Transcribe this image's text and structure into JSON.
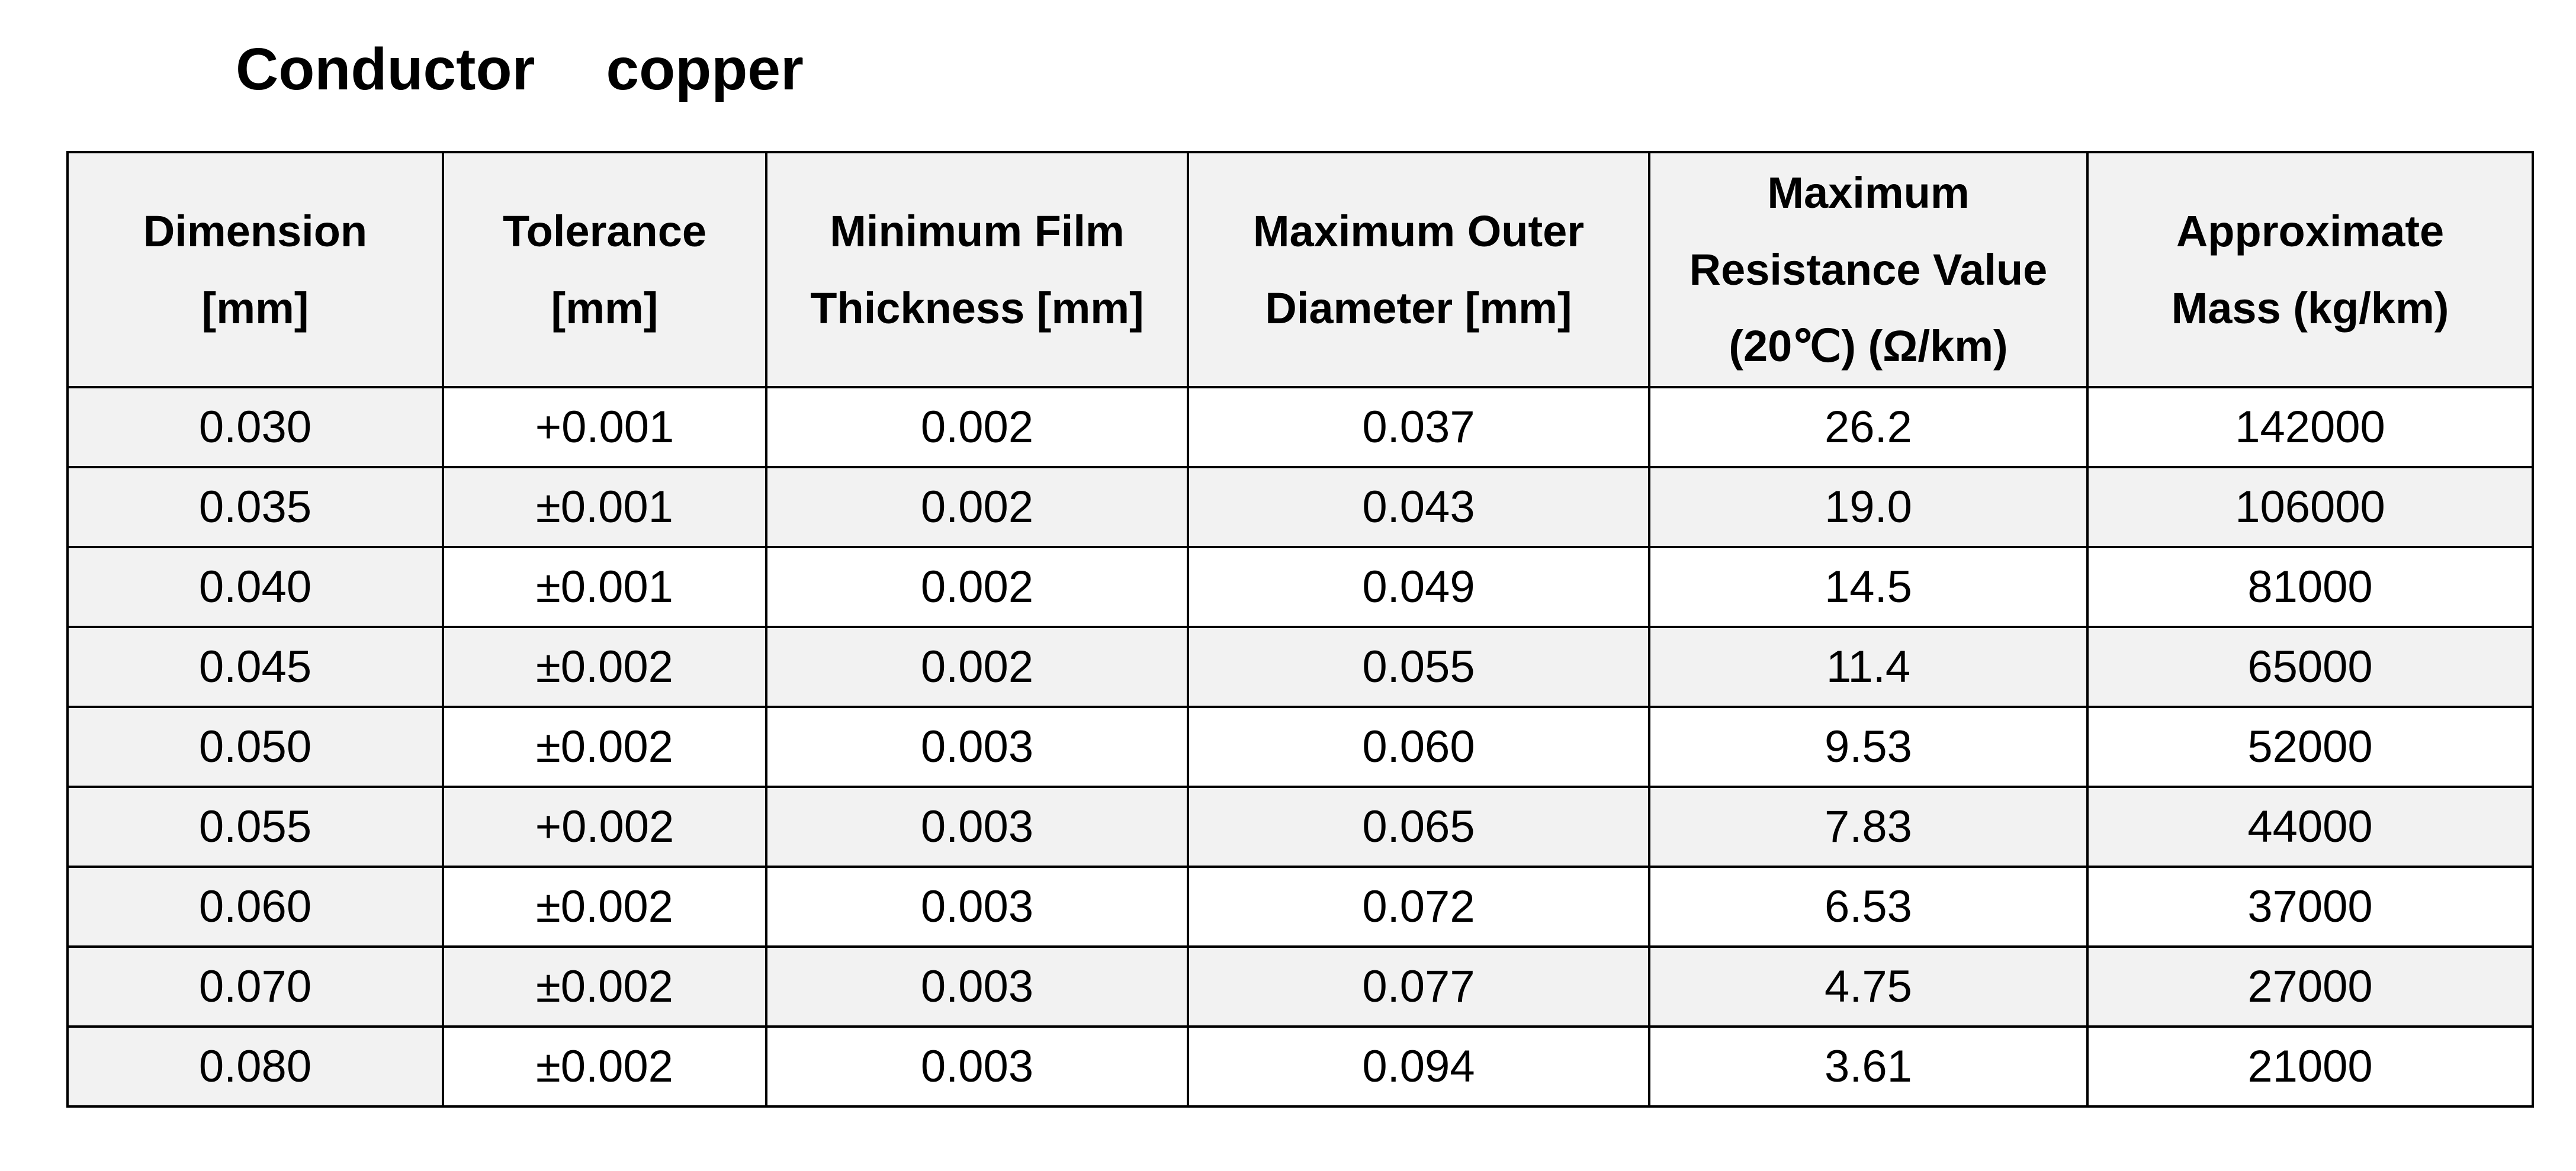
{
  "title": {
    "label": "Conductor",
    "value": "copper"
  },
  "table": {
    "headers": [
      "Dimension\n[mm]",
      "Tolerance\n[mm]",
      "Minimum Film\nThickness [mm]",
      "Maximum Outer\nDiameter [mm]",
      "Maximum\nResistance Value\n(20℃) (Ω/km)",
      "Approximate\nMass (kg/km)"
    ],
    "rows": [
      [
        "0.030",
        "+0.001",
        "0.002",
        "0.037",
        "26.2",
        "142000"
      ],
      [
        "0.035",
        "±0.001",
        "0.002",
        "0.043",
        "19.0",
        "106000"
      ],
      [
        "0.040",
        "±0.001",
        "0.002",
        "0.049",
        "14.5",
        "81000"
      ],
      [
        "0.045",
        "±0.002",
        "0.002",
        "0.055",
        "11.4",
        "65000"
      ],
      [
        "0.050",
        "±0.002",
        "0.003",
        "0.060",
        "9.53",
        "52000"
      ],
      [
        "0.055",
        "+0.002",
        "0.003",
        "0.065",
        "7.83",
        "44000"
      ],
      [
        "0.060",
        "±0.002",
        "0.003",
        "0.072",
        "6.53",
        "37000"
      ],
      [
        "0.070",
        "±0.002",
        "0.003",
        "0.077",
        "4.75",
        "27000"
      ],
      [
        "0.080",
        "±0.002",
        "0.003",
        "0.094",
        "3.61",
        "21000"
      ]
    ]
  }
}
